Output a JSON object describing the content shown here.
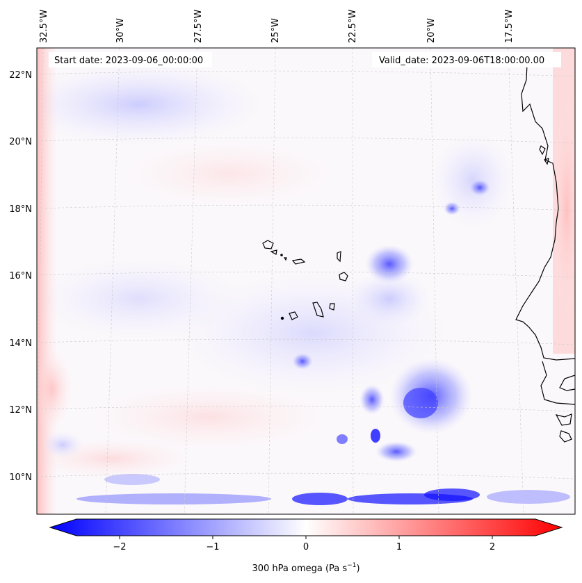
{
  "header": {
    "start_date": "Start date: 2023-09-06_00:00:00",
    "valid_date": "Valid_date: 2023-09-06T18:00:00.00"
  },
  "lon_labels": [
    "32.5°W",
    "30°W",
    "27.5°W",
    "25°W",
    "22.5°W",
    "20°W",
    "17.5°W"
  ],
  "lat_labels": [
    "22°N",
    "20°N",
    "18°N",
    "16°N",
    "14°N",
    "12°N",
    "10°N"
  ],
  "colorbar": {
    "ticks": [
      "−2",
      "−1",
      "0",
      "1",
      "2"
    ],
    "label": "300 hPa omega (Pa s",
    "label_sup": "−1",
    "label_close": ")",
    "colors": {
      "negative": "#0000ff",
      "zero": "#ffffff",
      "positive": "#ff0000"
    }
  },
  "map": {
    "coastline_color": "#000000",
    "gridline_color": "#cccccc",
    "islands": [
      "Santo Antão",
      "São Vicente",
      "São Nicolau",
      "Sal",
      "Boa Vista",
      "Maio",
      "Santiago",
      "Fogo",
      "Brava"
    ]
  }
}
